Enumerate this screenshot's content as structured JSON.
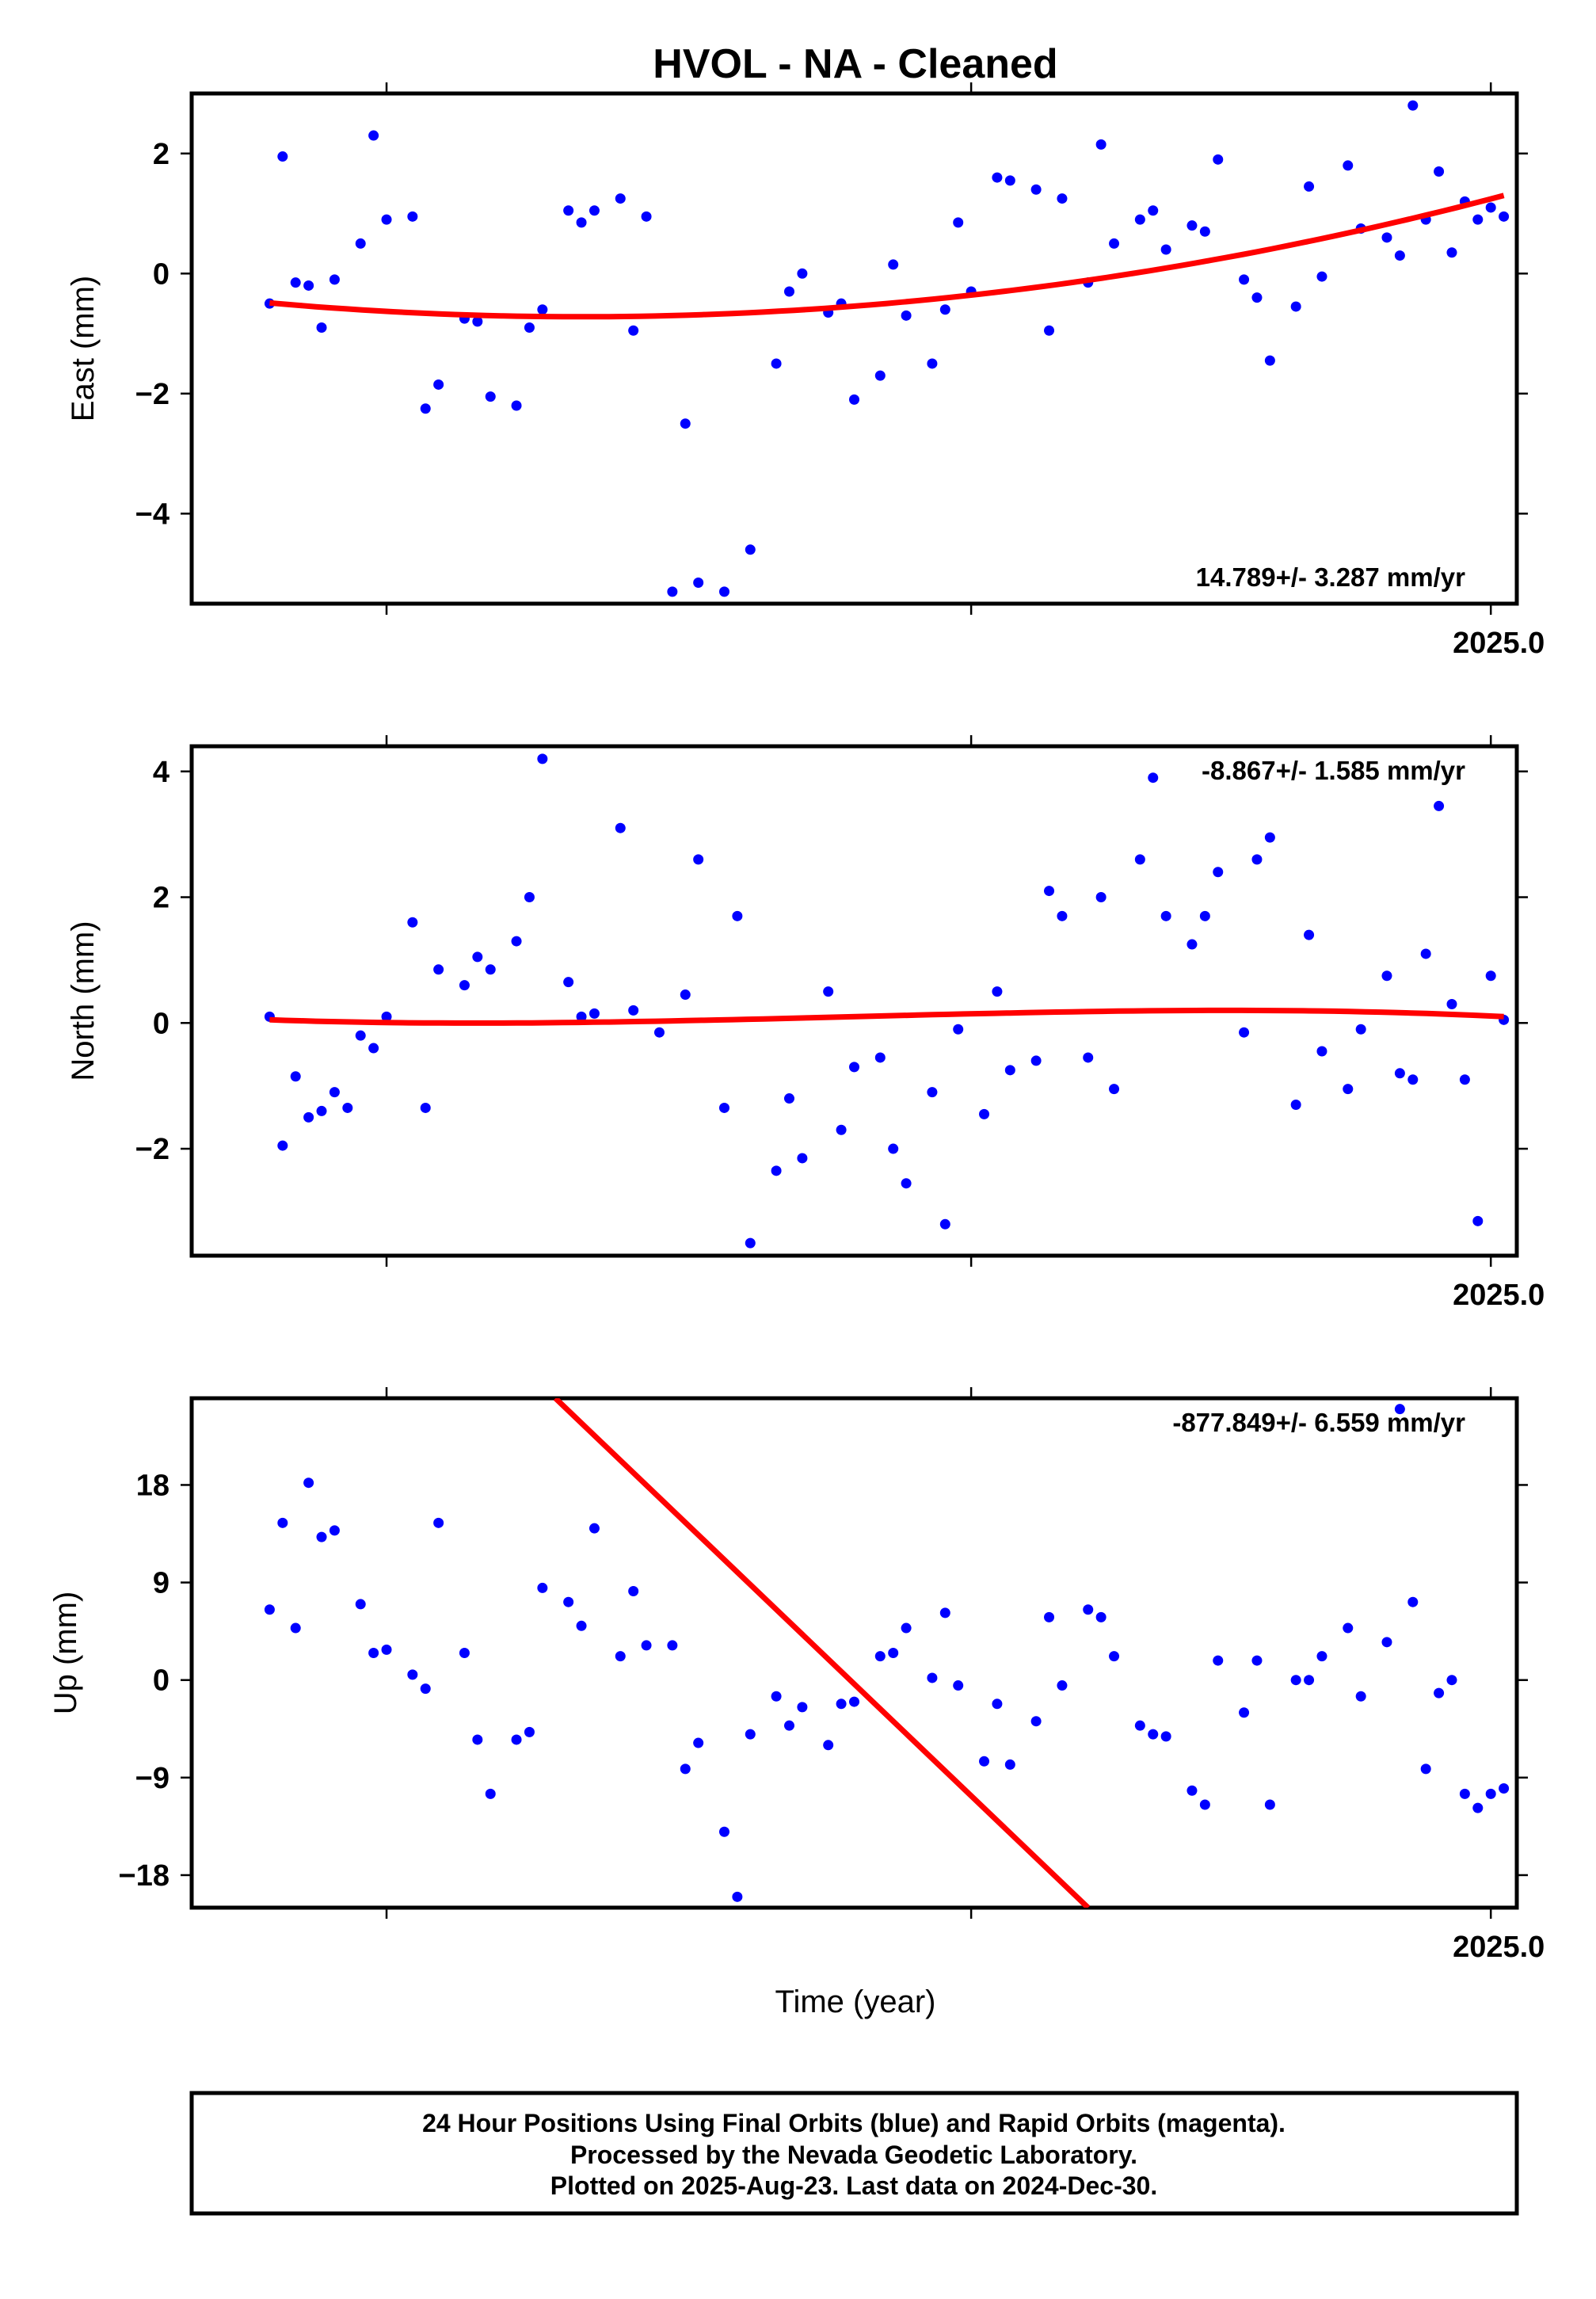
{
  "title": "HVOL  - NA - Cleaned",
  "xlabel": "Time (year)",
  "footer": {
    "line1": "24 Hour Positions Using Final Orbits (blue) and Rapid Orbits (magenta).",
    "line2": "Processed by the Nevada Geodetic Laboratory.",
    "line3": "Plotted on 2025-Aug-23. Last data on 2024-Dec-30."
  },
  "colors": {
    "points": "#0000ff",
    "fit": "#ff0000",
    "axes": "#000000"
  },
  "chart_data": [
    {
      "type": "scatter",
      "ylabel": "East (mm)",
      "rate_label": "14.789+/- 3.287 mm/yr",
      "xlim": [
        2024.0,
        2025.02
      ],
      "ylim": [
        -5.5,
        3.0
      ],
      "xtick_label": "2025.0",
      "yticks": [
        2,
        0,
        -2,
        -4
      ],
      "ytick_labels": [
        "2",
        "0",
        "−2",
        "−4"
      ],
      "x": [
        2024.06,
        2024.07,
        2024.08,
        2024.09,
        2024.1,
        2024.11,
        2024.13,
        2024.14,
        2024.15,
        2024.17,
        2024.18,
        2024.19,
        2024.21,
        2024.22,
        2024.23,
        2024.25,
        2024.26,
        2024.27,
        2024.29,
        2024.3,
        2024.31,
        2024.33,
        2024.34,
        2024.35,
        2024.37,
        2024.38,
        2024.39,
        2024.41,
        2024.43,
        2024.45,
        2024.46,
        2024.47,
        2024.49,
        2024.5,
        2024.51,
        2024.53,
        2024.54,
        2024.55,
        2024.57,
        2024.58,
        2024.59,
        2024.6,
        2024.62,
        2024.63,
        2024.65,
        2024.66,
        2024.67,
        2024.69,
        2024.7,
        2024.71,
        2024.73,
        2024.74,
        2024.75,
        2024.77,
        2024.78,
        2024.79,
        2024.81,
        2024.82,
        2024.83,
        2024.85,
        2024.86,
        2024.87,
        2024.89,
        2024.9,
        2024.92,
        2024.93,
        2024.94,
        2024.95,
        2024.96,
        2024.97,
        2024.98,
        2024.99,
        2025.0,
        2025.01
      ],
      "y": [
        -0.5,
        1.95,
        -0.15,
        -0.2,
        -0.9,
        -0.1,
        0.5,
        2.3,
        0.9,
        0.95,
        -2.25,
        -1.85,
        -0.75,
        -0.8,
        -2.05,
        -2.2,
        -0.9,
        -0.6,
        1.05,
        0.85,
        1.05,
        1.25,
        -0.95,
        0.95,
        -5.3,
        -2.5,
        -5.15,
        -5.3,
        -4.6,
        -1.5,
        -0.3,
        0.0,
        -0.65,
        -0.5,
        -2.1,
        -1.7,
        0.15,
        -0.7,
        -1.5,
        -0.6,
        0.85,
        -0.3,
        1.6,
        1.55,
        1.4,
        -0.95,
        1.25,
        -0.15,
        2.15,
        0.5,
        0.9,
        1.05,
        0.4,
        0.8,
        0.7,
        1.9,
        -0.1,
        -0.4,
        -1.45,
        -0.55,
        1.45,
        -0.05,
        1.8,
        0.75,
        0.6,
        0.3,
        2.8,
        0.9,
        1.7,
        0.35,
        1.2,
        0.9,
        1.1,
        0.95
      ],
      "fit": {
        "x0": 2024.06,
        "x1": 2025.01,
        "y0": -0.65,
        "ymin": -0.72,
        "y1": 1.3
      }
    },
    {
      "type": "scatter",
      "ylabel": "North (mm)",
      "rate_label": "-8.867+/- 1.585 mm/yr",
      "xlim": [
        2024.0,
        2025.02
      ],
      "ylim": [
        -3.7,
        4.4
      ],
      "xtick_label": "2025.0",
      "yticks": [
        4,
        2,
        0,
        -2
      ],
      "ytick_labels": [
        "4",
        "2",
        "0",
        "−2"
      ],
      "x": [
        2024.06,
        2024.07,
        2024.08,
        2024.09,
        2024.1,
        2024.11,
        2024.12,
        2024.13,
        2024.14,
        2024.15,
        2024.17,
        2024.18,
        2024.19,
        2024.21,
        2024.22,
        2024.23,
        2024.25,
        2024.26,
        2024.27,
        2024.29,
        2024.3,
        2024.31,
        2024.33,
        2024.34,
        2024.36,
        2024.38,
        2024.39,
        2024.41,
        2024.42,
        2024.43,
        2024.45,
        2024.46,
        2024.47,
        2024.49,
        2024.5,
        2024.51,
        2024.53,
        2024.54,
        2024.55,
        2024.57,
        2024.58,
        2024.59,
        2024.61,
        2024.62,
        2024.63,
        2024.65,
        2024.66,
        2024.67,
        2024.69,
        2024.7,
        2024.71,
        2024.73,
        2024.74,
        2024.75,
        2024.77,
        2024.78,
        2024.79,
        2024.81,
        2024.82,
        2024.83,
        2024.85,
        2024.86,
        2024.87,
        2024.89,
        2024.9,
        2024.92,
        2024.93,
        2024.94,
        2024.95,
        2024.96,
        2024.97,
        2024.98,
        2024.99,
        2025.0,
        2025.01
      ],
      "y": [
        0.1,
        -1.95,
        -0.85,
        -1.5,
        -1.4,
        -1.1,
        -1.35,
        -0.2,
        -0.4,
        0.1,
        1.6,
        -1.35,
        0.85,
        0.6,
        1.05,
        0.85,
        1.3,
        2.0,
        4.2,
        0.65,
        0.1,
        0.15,
        3.1,
        0.2,
        -0.15,
        0.45,
        2.6,
        -1.35,
        1.7,
        -3.5,
        -2.35,
        -1.2,
        -2.15,
        0.5,
        -1.7,
        -0.7,
        -0.55,
        -2.0,
        -2.55,
        -1.1,
        -3.2,
        -0.1,
        -1.45,
        0.5,
        -0.75,
        -0.6,
        2.1,
        1.7,
        -0.55,
        2.0,
        -1.05,
        2.6,
        3.9,
        1.7,
        1.25,
        1.7,
        2.4,
        -0.15,
        2.6,
        2.95,
        -1.3,
        1.4,
        -0.45,
        -1.05,
        -0.1,
        0.75,
        -0.8,
        -0.9,
        1.1,
        3.45,
        0.3,
        -0.9,
        -3.15,
        0.75,
        0.05
      ],
      "fit": {
        "x0": 2024.06,
        "x1": 2025.01,
        "y0": 0.05,
        "ymin": 0.0,
        "ymax": 0.2,
        "y1": 0.1
      }
    },
    {
      "type": "scatter",
      "ylabel": "Up (mm)",
      "rate_label": "-877.849+/- 6.559 mm/yr",
      "xlim": [
        2024.0,
        2025.02
      ],
      "ylim": [
        -21.0,
        26.0
      ],
      "xtick_label": "2025.0",
      "yticks": [
        18,
        9,
        0,
        -9,
        -18
      ],
      "ytick_labels": [
        "18",
        "9",
        "0",
        "−9",
        "−18"
      ],
      "x": [
        2024.06,
        2024.07,
        2024.08,
        2024.09,
        2024.1,
        2024.11,
        2024.13,
        2024.14,
        2024.15,
        2024.17,
        2024.18,
        2024.19,
        2024.21,
        2024.22,
        2024.23,
        2024.25,
        2024.26,
        2024.27,
        2024.29,
        2024.3,
        2024.31,
        2024.33,
        2024.34,
        2024.35,
        2024.37,
        2024.38,
        2024.39,
        2024.41,
        2024.42,
        2024.43,
        2024.45,
        2024.46,
        2024.47,
        2024.49,
        2024.5,
        2024.51,
        2024.53,
        2024.54,
        2024.55,
        2024.57,
        2024.58,
        2024.59,
        2024.61,
        2024.62,
        2024.63,
        2024.65,
        2024.66,
        2024.67,
        2024.69,
        2024.7,
        2024.71,
        2024.73,
        2024.74,
        2024.75,
        2024.77,
        2024.78,
        2024.79,
        2024.81,
        2024.82,
        2024.83,
        2024.85,
        2024.86,
        2024.87,
        2024.89,
        2024.9,
        2024.92,
        2024.93,
        2024.94,
        2024.95,
        2024.96,
        2024.97,
        2024.98,
        2024.99,
        2025.0,
        2025.01
      ],
      "y": [
        6.5,
        14.5,
        4.8,
        18.2,
        13.2,
        13.8,
        7.0,
        2.5,
        2.8,
        0.5,
        -0.8,
        14.5,
        2.5,
        -5.5,
        -10.5,
        -5.5,
        -4.8,
        8.5,
        7.2,
        5.0,
        14.0,
        2.2,
        8.2,
        3.2,
        3.2,
        -8.2,
        -5.8,
        -14.0,
        -20.0,
        -5.0,
        -1.5,
        -4.2,
        -2.5,
        -6.0,
        -2.2,
        -2.0,
        2.2,
        2.5,
        4.8,
        0.2,
        6.2,
        -0.5,
        -7.5,
        -2.2,
        -7.8,
        -3.8,
        5.8,
        -0.5,
        6.5,
        5.8,
        2.2,
        -4.2,
        -5.0,
        -5.2,
        -10.2,
        -11.5,
        1.8,
        -3.0,
        1.8,
        -11.5,
        0.0,
        0.0,
        2.2,
        4.8,
        -1.5,
        3.5,
        25.0,
        7.2,
        -8.2,
        -1.2,
        0.0,
        -10.5,
        -11.8,
        -10.5,
        -10.0
      ],
      "fit": {
        "x0": 2024.28,
        "y0": 26.0,
        "x1": 2024.69,
        "y1": -21.0
      }
    }
  ]
}
